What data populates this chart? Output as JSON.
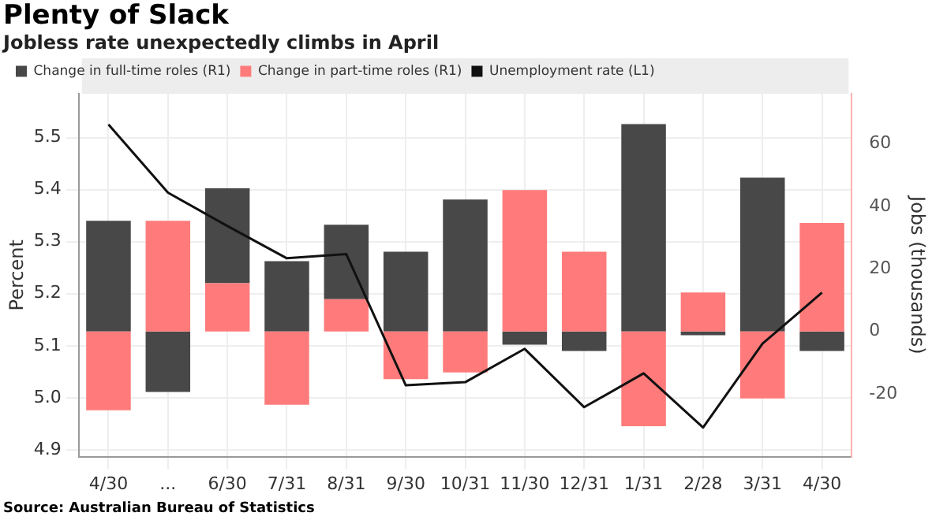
{
  "chart_data": {
    "type": "bar",
    "title": "Plenty of Slack",
    "subtitle": "Jobless rate unexpectedly climbs in April",
    "ylabel": "Percent",
    "y2label": "Jobs (thousands)",
    "categories": [
      "4/30",
      "...",
      "6/30",
      "7/31",
      "8/31",
      "9/30",
      "10/31",
      "11/30",
      "12/31",
      "1/31",
      "2/28",
      "3/31",
      "4/30"
    ],
    "stacked": true,
    "series": [
      {
        "name": "Change in part-time roles (R1)",
        "color": "#ff7b7b",
        "axis": "y2",
        "values": [
          -25.2,
          35.4,
          15.4,
          -23.4,
          10.3,
          -15.2,
          -13.1,
          45.2,
          25.5,
          -30.3,
          12.5,
          -21.4,
          34.7
        ]
      },
      {
        "name": "Change in full-time roles (R1)",
        "color": "#484848",
        "axis": "y2",
        "values": [
          35.4,
          -19.3,
          30.4,
          22.5,
          23.8,
          25.5,
          42.2,
          -4.2,
          -6.2,
          66.3,
          -1.2,
          49.2,
          -6.2
        ]
      },
      {
        "name": "Unemployment rate (L1)",
        "type": "line",
        "color": "#111111",
        "values": [
          5.525,
          5.394,
          5.33,
          5.268,
          5.276,
          5.024,
          5.03,
          5.094,
          4.982,
          5.047,
          4.943,
          5.104,
          5.202
        ]
      }
    ],
    "ylim": [
      4.887,
      5.584
    ],
    "yticks": [
      4.9,
      {
        "value": 5,
        "label": "5.0"
      },
      5.1,
      5.2,
      5.3,
      5.4,
      5.5
    ],
    "y2lim": [
      -40,
      76
    ],
    "y2ticks": [
      -20,
      0,
      20,
      40,
      60
    ],
    "grid": true,
    "legend": "top",
    "marker": "none",
    "annotations": [
      "Source: Australian Bureau of Statistics"
    ]
  }
}
